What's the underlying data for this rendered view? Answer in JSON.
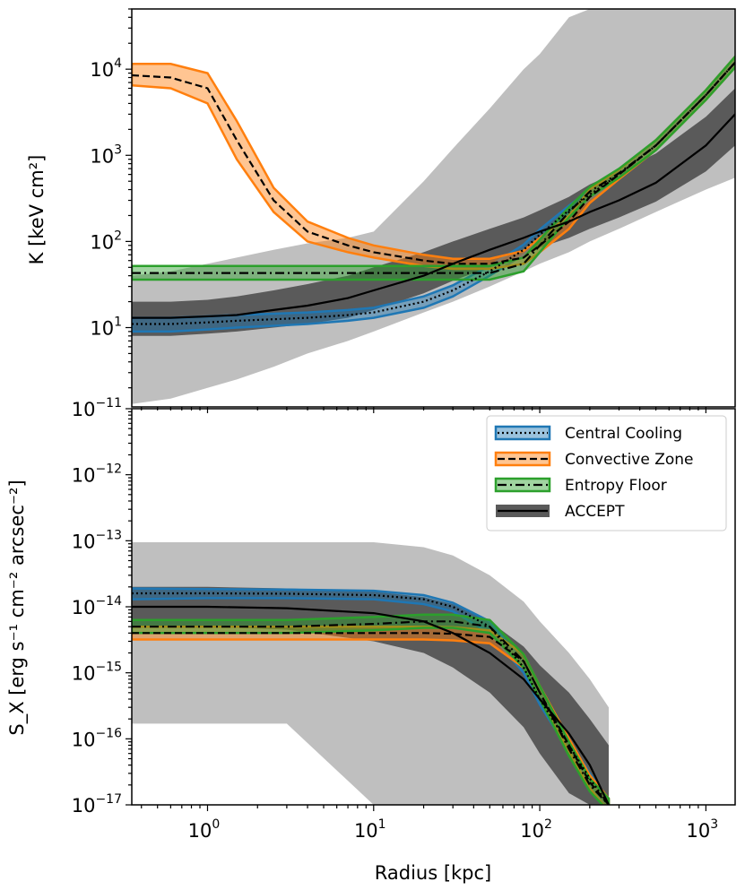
{
  "colors": {
    "central_cooling": "#1f77b4",
    "convective_zone": "#ff7f0e",
    "entropy_floor": "#2ca02c",
    "accept": "#000000",
    "accept_outer_band": "#bfbfbf",
    "accept_inner_band": "#5a5a5a"
  },
  "chart_data": [
    {
      "type": "line",
      "panel": "top",
      "xscale": "log",
      "yscale": "log",
      "xlim": [
        0.35,
        1500
      ],
      "ylim": [
        1.2,
        50000
      ],
      "ylabel": "K [keV cm²]",
      "xlabel": "",
      "yticks": [
        {
          "value": 10,
          "base": "10",
          "exp": "1"
        },
        {
          "value": 100,
          "base": "10",
          "exp": "2"
        },
        {
          "value": 1000,
          "base": "10",
          "exp": "3"
        },
        {
          "value": 10000,
          "base": "10",
          "exp": "4"
        }
      ],
      "x": [
        0.35,
        0.6,
        1.0,
        1.5,
        2.5,
        4,
        7,
        10,
        20,
        30,
        50,
        80,
        100,
        150,
        200,
        300,
        500,
        1000,
        1500
      ],
      "series": [
        {
          "name": "Central Cooling",
          "style": "dotted",
          "color": "#1f77b4",
          "values": [
            11,
            11,
            11.5,
            12,
            12.5,
            13,
            14,
            15,
            20,
            27,
            45,
            80,
            120,
            230,
            350,
            600,
            1300,
            5000,
            12000
          ],
          "band_low": [
            9,
            9,
            9.5,
            10,
            10.5,
            11,
            12,
            13,
            17,
            23,
            40,
            70,
            105,
            200,
            310,
            530,
            1150,
            4400,
            10500
          ],
          "band_high": [
            13,
            13,
            13.5,
            14,
            14.5,
            15,
            16,
            17,
            23,
            31,
            52,
            92,
            138,
            260,
            400,
            680,
            1500,
            5700,
            14000
          ]
        },
        {
          "name": "Convective Zone",
          "style": "dashed",
          "color": "#ff7f0e",
          "values": [
            8500,
            8000,
            6000,
            1500,
            300,
            130,
            90,
            75,
            60,
            55,
            55,
            65,
            90,
            170,
            330,
            600,
            1300,
            5000,
            12000
          ],
          "band_low": [
            6500,
            6000,
            4000,
            900,
            220,
            100,
            75,
            65,
            52,
            48,
            48,
            55,
            75,
            140,
            280,
            530,
            1150,
            4400,
            10500
          ],
          "band_high": [
            11500,
            11500,
            9000,
            2500,
            420,
            170,
            110,
            90,
            70,
            63,
            63,
            78,
            110,
            200,
            400,
            680,
            1500,
            5700,
            14000
          ]
        },
        {
          "name": "Entropy Floor",
          "style": "dash-dot",
          "color": "#2ca02c",
          "values": [
            43,
            43,
            43,
            43,
            43,
            43,
            43,
            43,
            43,
            43,
            43,
            55,
            90,
            220,
            380,
            620,
            1300,
            5000,
            12000
          ],
          "band_low": [
            36,
            36,
            36,
            36,
            36,
            36,
            36,
            36,
            36,
            36,
            36,
            45,
            75,
            190,
            330,
            550,
            1150,
            4400,
            10500
          ],
          "band_high": [
            52,
            52,
            52,
            52,
            52,
            52,
            52,
            52,
            52,
            52,
            52,
            65,
            105,
            250,
            430,
            700,
            1500,
            5700,
            14000
          ]
        },
        {
          "name": "ACCEPT",
          "style": "solid",
          "color": "#000000",
          "values": [
            13,
            13,
            13.5,
            14,
            16,
            18,
            22,
            27,
            40,
            55,
            80,
            110,
            130,
            170,
            220,
            300,
            480,
            1300,
            3000
          ],
          "band_low": [
            8,
            8,
            8.5,
            9,
            10,
            11,
            13,
            16,
            25,
            35,
            50,
            70,
            85,
            110,
            140,
            190,
            290,
            650,
            1300
          ],
          "band_high": [
            20,
            20,
            21,
            23,
            27,
            32,
            40,
            50,
            75,
            100,
            140,
            190,
            230,
            330,
            460,
            650,
            1050,
            2800,
            6000
          ],
          "outer_low": [
            1.3,
            1.5,
            2,
            2.5,
            3.5,
            5,
            7,
            9,
            15,
            20,
            30,
            45,
            55,
            75,
            100,
            140,
            220,
            400,
            550
          ],
          "outer_high": [
            40,
            45,
            55,
            65,
            80,
            95,
            110,
            130,
            500,
            1200,
            3500,
            10000,
            15000,
            40000,
            50000,
            50000,
            50000,
            50000,
            50000
          ]
        }
      ]
    },
    {
      "type": "line",
      "panel": "bottom",
      "xscale": "log",
      "yscale": "log",
      "xlim": [
        0.35,
        1500
      ],
      "ylim": [
        1e-17,
        1e-11
      ],
      "xlabel": "Radius [kpc]",
      "ylabel": "S_X [erg s⁻¹ cm⁻² arcsec⁻²]",
      "xticks": [
        {
          "value": 1,
          "base": "10",
          "exp": "0"
        },
        {
          "value": 10,
          "base": "10",
          "exp": "1"
        },
        {
          "value": 100,
          "base": "10",
          "exp": "2"
        },
        {
          "value": 1000,
          "base": "10",
          "exp": "3"
        }
      ],
      "yticks": [
        {
          "value": 1e-11,
          "base": "10",
          "exp": "−11"
        },
        {
          "value": 1e-12,
          "base": "10",
          "exp": "−12"
        },
        {
          "value": 1e-13,
          "base": "10",
          "exp": "−13"
        },
        {
          "value": 1e-14,
          "base": "10",
          "exp": "−14"
        },
        {
          "value": 1e-15,
          "base": "10",
          "exp": "−15"
        },
        {
          "value": 1e-16,
          "base": "10",
          "exp": "−16"
        },
        {
          "value": 1e-17,
          "base": "10",
          "exp": "−17"
        }
      ],
      "x": [
        0.35,
        1,
        3,
        10,
        20,
        30,
        50,
        80,
        100,
        150,
        200,
        260
      ],
      "series": [
        {
          "name": "Central Cooling",
          "style": "dotted",
          "color": "#1f77b4",
          "values": [
            1.6e-14,
            1.6e-14,
            1.58e-14,
            1.5e-14,
            1.3e-14,
            1e-14,
            5e-15,
            1.2e-15,
            4e-16,
            8e-17,
            2.5e-17,
            1e-17
          ],
          "band_low": [
            1.3e-14,
            1.35e-14,
            1.35e-14,
            1.3e-14,
            1.1e-14,
            8.5e-15,
            4e-15,
            1e-15,
            3.3e-16,
            6.5e-17,
            2e-17,
            8e-18
          ],
          "band_high": [
            1.9e-14,
            1.85e-14,
            1.82e-14,
            1.75e-14,
            1.5e-14,
            1.15e-14,
            6e-15,
            1.45e-15,
            4.8e-16,
            9.5e-17,
            3e-17,
            1.2e-17
          ]
        },
        {
          "name": "Convective Zone",
          "style": "dashed",
          "color": "#ff7f0e",
          "values": [
            4e-15,
            4e-15,
            4e-15,
            4e-15,
            4e-15,
            3.9e-15,
            3.5e-15,
            1.5e-15,
            5e-16,
            8e-17,
            2.2e-17,
            1e-17
          ],
          "band_low": [
            3.2e-15,
            3.2e-15,
            3.2e-15,
            3.2e-15,
            3.2e-15,
            3.1e-15,
            2.8e-15,
            1.2e-15,
            4e-16,
            6.5e-17,
            1.8e-17,
            8e-18
          ],
          "band_high": [
            5e-15,
            5e-15,
            5e-15,
            5e-15,
            5e-15,
            4.9e-15,
            4.4e-15,
            1.9e-15,
            6.3e-16,
            1e-16,
            2.8e-17,
            1.25e-17
          ]
        },
        {
          "name": "Entropy Floor",
          "style": "dash-dot",
          "color": "#2ca02c",
          "values": [
            5e-15,
            5e-15,
            5e-15,
            5.5e-15,
            6e-15,
            6e-15,
            5e-15,
            1.5e-15,
            5e-16,
            7e-17,
            2e-17,
            1e-17
          ],
          "band_low": [
            4e-15,
            4e-15,
            4e-15,
            4.4e-15,
            4.8e-15,
            4.8e-15,
            4e-15,
            1.2e-15,
            4e-16,
            5.5e-17,
            1.6e-17,
            8e-18
          ],
          "band_high": [
            6.3e-15,
            6.3e-15,
            6.3e-15,
            7e-15,
            7.6e-15,
            7.6e-15,
            6.3e-15,
            1.9e-15,
            6.3e-16,
            9e-17,
            2.5e-17,
            1.25e-17
          ]
        },
        {
          "name": "ACCEPT",
          "style": "solid",
          "color": "#000000",
          "values": [
            1e-14,
            1e-14,
            9.5e-15,
            8e-15,
            6e-15,
            4e-15,
            2e-15,
            8e-16,
            4e-16,
            1.2e-16,
            4e-17,
            1e-17
          ],
          "band_low": [
            5e-15,
            5e-15,
            4.5e-15,
            3e-15,
            2e-15,
            1.2e-15,
            5e-16,
            1.5e-16,
            6e-17,
            1.5e-17,
            1e-17,
            1e-17
          ],
          "band_high": [
            2e-14,
            2e-14,
            1.9e-14,
            1.7e-14,
            1.4e-14,
            1.1e-14,
            6e-15,
            2.5e-15,
            1.3e-15,
            5e-16,
            2e-16,
            8e-17
          ],
          "outer_low": [
            1.7e-16,
            1.7e-16,
            1.7e-16,
            1e-17,
            1e-17,
            1e-17,
            1e-17,
            1e-17,
            1e-17,
            1e-17,
            1e-17,
            1e-17
          ],
          "outer_high": [
            9.5e-14,
            9.5e-14,
            9.5e-14,
            9.5e-14,
            8e-14,
            6e-14,
            3e-14,
            1.2e-14,
            6e-15,
            2e-15,
            8e-16,
            3e-16
          ]
        }
      ],
      "legend": {
        "position": "top-right",
        "entries": [
          "Central Cooling",
          "Convective Zone",
          "Entropy Floor",
          "ACCEPT"
        ]
      }
    }
  ]
}
